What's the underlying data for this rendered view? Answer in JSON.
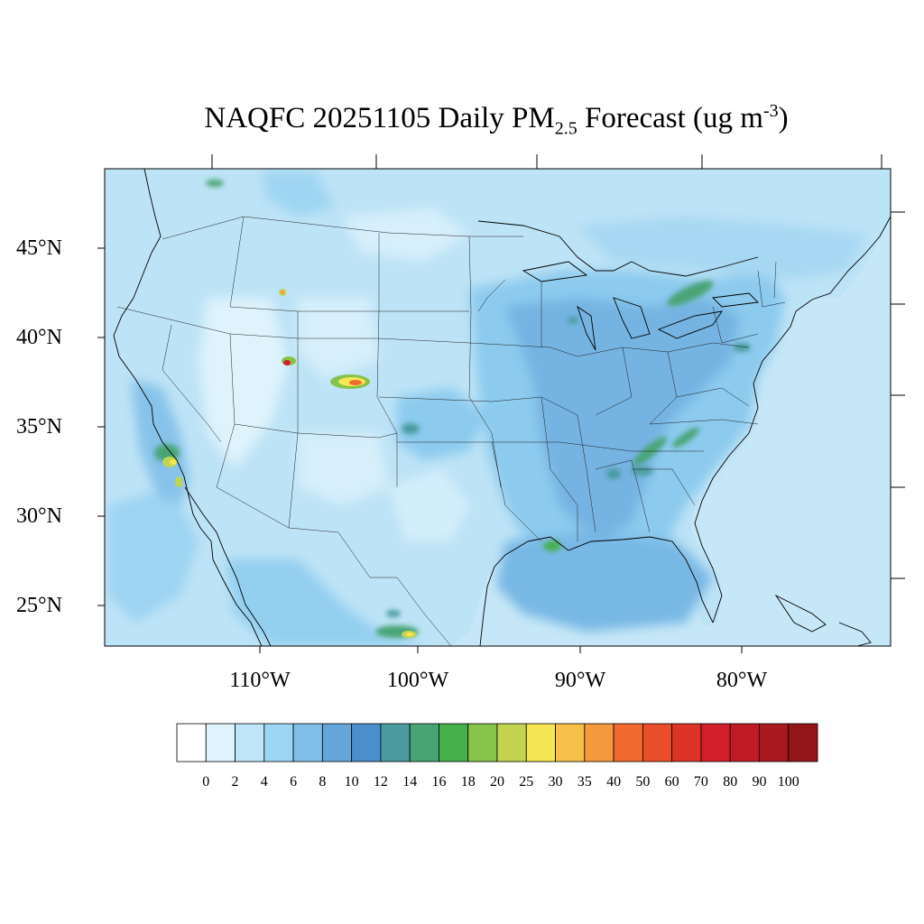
{
  "title": {
    "prefix": "NAQFC 20251105 Daily PM",
    "subscript": "2.5",
    "middle": " Forecast (ug m",
    "superscript": "-3",
    "suffix": ")"
  },
  "map": {
    "projection": "Lambert conformal",
    "region": "CONUS",
    "lat_labels": [
      "45°N",
      "40°N",
      "35°N",
      "30°N",
      "25°N"
    ],
    "lon_labels": [
      "110°W",
      "100°W",
      "90°W",
      "80°W"
    ],
    "ocean_color": "#c6e7f7",
    "land_base_color": "#bfe3f6",
    "hotspots": [
      {
        "name": "Colorado plume",
        "value": 35
      },
      {
        "name": "Utah hotspot",
        "value": 90
      },
      {
        "name": "Southern California",
        "value": 25
      },
      {
        "name": "Lake Erie / Ontario band",
        "value": 16
      },
      {
        "name": "Tennessee valley",
        "value": 16
      },
      {
        "name": "Louisiana coast",
        "value": 18
      },
      {
        "name": "Northern Mexico",
        "value": 20
      }
    ]
  },
  "colorbar": {
    "labels": [
      "0",
      "2",
      "4",
      "6",
      "8",
      "10",
      "12",
      "14",
      "16",
      "18",
      "20",
      "25",
      "30",
      "35",
      "40",
      "50",
      "60",
      "70",
      "80",
      "90",
      "100"
    ],
    "colors": [
      "#ffffff",
      "#def3fc",
      "#bfe6f8",
      "#9bd6f4",
      "#80c0e8",
      "#64a6da",
      "#4a8ecc",
      "#4a9b9e",
      "#48a474",
      "#46b04a",
      "#86c34a",
      "#c3d550",
      "#f6e654",
      "#f7c048",
      "#f59a3c",
      "#f26b2e",
      "#ea4d2a",
      "#dd3427",
      "#d11e2a",
      "#c01a24",
      "#a8181e",
      "#941518"
    ]
  }
}
